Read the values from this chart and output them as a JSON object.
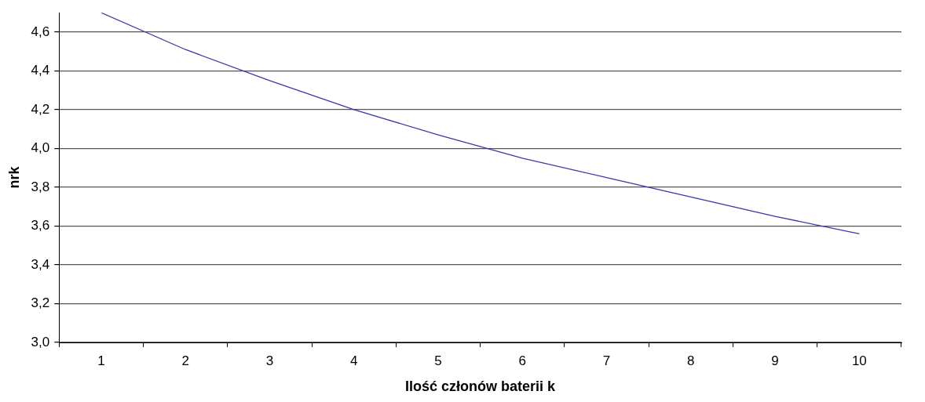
{
  "chart_data": {
    "type": "line",
    "xlabel": "Ilość członów baterii k",
    "ylabel": "nrk",
    "categories": [
      "1",
      "2",
      "3",
      "4",
      "5",
      "6",
      "7",
      "8",
      "9",
      "10"
    ],
    "series": [
      {
        "color": "#3a3aa8",
        "values": [
          4.7,
          4.51,
          4.35,
          4.2,
          4.07,
          3.95,
          3.85,
          3.75,
          3.65,
          3.56
        ]
      }
    ],
    "ylim": [
      3.0,
      4.7
    ],
    "yticks": [
      {
        "value": 3.0,
        "label": "3,0"
      },
      {
        "value": 3.2,
        "label": "3,2"
      },
      {
        "value": 3.4,
        "label": "3,4"
      },
      {
        "value": 3.6,
        "label": "3,6"
      },
      {
        "value": 3.8,
        "label": "3,8"
      },
      {
        "value": 4.0,
        "label": "4,0"
      },
      {
        "value": 4.2,
        "label": "4,2"
      },
      {
        "value": 4.4,
        "label": "4,4"
      },
      {
        "value": 4.6,
        "label": "4,6"
      }
    ],
    "grid": "y",
    "legend": false,
    "marker": "none",
    "line_style": "solid"
  }
}
